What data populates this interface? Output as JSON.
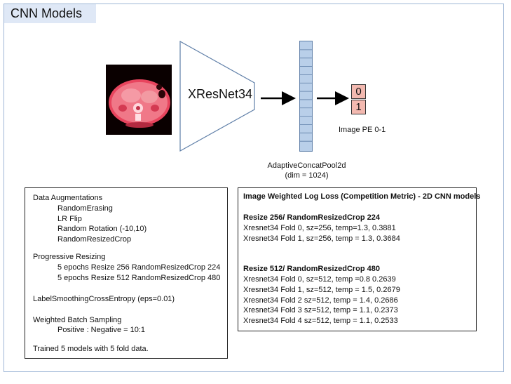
{
  "title": "CNN Models",
  "diagram": {
    "model_name": "XResNet34",
    "pool_label": "AdaptiveConcatPool2d",
    "pool_dim": "(dim = 1024)",
    "output_values": [
      "0",
      "1"
    ],
    "output_label": "Image PE 0-1"
  },
  "left_panel": {
    "lines": [
      "Data Augmentations",
      "RandomErasing",
      "LR Flip",
      "Random Rotation (-10,10)",
      "RandomResizedCrop",
      "Progressive Resizing",
      "5 epochs Resize 256 RandomResizedCrop 224",
      "5 epochs Resize 512 RandomResizedCrop 480",
      "LabelSmoothingCrossEntropy (eps=0.01)",
      "Weighted Batch Sampling",
      "Positive : Negative = 10:1",
      "Trained 5 models with 5 fold data."
    ]
  },
  "right_panel": {
    "title": "Image Weighted Log Loss (Competition Metric) - 2D CNN models",
    "section1_title": "Resize 256/ RandomResizedCrop 224",
    "section1_rows": [
      "Xresnet34 Fold 0, sz=256, temp=1.3, 0.3881",
      "Xresnet34 Fold 1, sz=256, temp = 1.3, 0.3684"
    ],
    "section2_title": "Resize 512/ RandomResizedCrop 480",
    "section2_rows": [
      "Xresnet34 Fold 0, sz=512, temp =0.8 0.2639",
      "Xresnet34 Fold 1, sz=512, temp = 1.5, 0.2679",
      "Xresnet34 Fold 2 sz=512, temp = 1.4, 0.2686",
      "Xresnet34 Fold 3 sz=512, temp = 1.1, 0.2373",
      "Xresnet34 Fold 4 sz=512, temp = 1.1, 0.2533"
    ]
  },
  "colors": {
    "title_bg": "#dfe8f6",
    "pool_fill": "#b9cfe9",
    "output_fill": "#f3b9b0",
    "ct_tint": "#e0304a"
  }
}
